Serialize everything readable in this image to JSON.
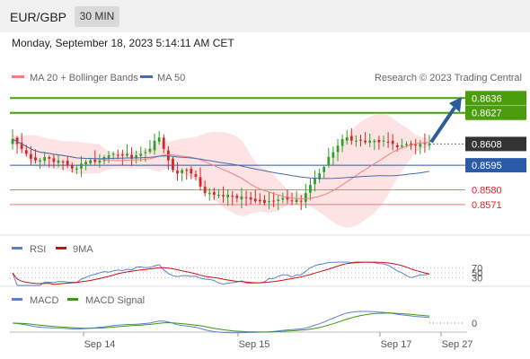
{
  "header": {
    "pair": "EUR/GBP",
    "timeframe": "30 MIN",
    "datetime": "Monday, September 18, 2023 5:14:11 AM CET"
  },
  "legend": {
    "ma20": "MA 20 + Bollinger Bands",
    "ma50": "MA 50",
    "rsi": "RSI",
    "rsi_ma": "9MA",
    "macd": "MACD",
    "macd_signal": "MACD Signal",
    "copyright": "Research © 2023 Trading Central"
  },
  "colors": {
    "up_candle": "#2ca02c",
    "down_candle": "#d62728",
    "bollinger_fill": "#fde0e0",
    "ma20": "#f08080",
    "ma50": "#4a6aa5",
    "resistance": "#4a9e0e",
    "pivot": "#2a5aa8",
    "support": "#f07a7a",
    "arrow": "#2e5b9b",
    "rsi": "#5b7fd6",
    "rsi_ma": "#cc1111",
    "macd": "#5b7fd6",
    "macd_signal": "#3a9a0e"
  },
  "chart_data": [
    {
      "type": "candlestick",
      "title": "EUR/GBP",
      "timeframe": "30 MIN",
      "x_tick_labels": [
        "Sep 14",
        "Sep 15",
        "Sep 17",
        "Sep 27"
      ],
      "ylim": [
        0.856,
        0.864
      ],
      "levels": [
        {
          "value": 0.8636,
          "label": "0.8636",
          "kind": "resistance"
        },
        {
          "value": 0.8627,
          "label": "0.8627",
          "kind": "resistance"
        },
        {
          "value": 0.8608,
          "label": "0.8608",
          "kind": "last_price"
        },
        {
          "value": 0.8595,
          "label": "0.8595",
          "kind": "pivot"
        },
        {
          "value": 0.858,
          "label": "0.8580",
          "kind": "support"
        },
        {
          "value": 0.8571,
          "label": "0.8571",
          "kind": "support"
        }
      ],
      "close": [
        0.8611,
        0.8608,
        0.8605,
        0.8602,
        0.8599,
        0.8598,
        0.8598,
        0.86,
        0.8599,
        0.8597,
        0.8598,
        0.8597,
        0.8595,
        0.8593,
        0.8593,
        0.8596,
        0.8597,
        0.8598,
        0.8597,
        0.8598,
        0.86,
        0.8601,
        0.8602,
        0.8601,
        0.8601,
        0.8602,
        0.8599,
        0.8601,
        0.8602,
        0.8603,
        0.8605,
        0.861,
        0.8612,
        0.8605,
        0.8598,
        0.8592,
        0.859,
        0.8592,
        0.8592,
        0.859,
        0.8588,
        0.8582,
        0.8578,
        0.8578,
        0.8577,
        0.8577,
        0.8576,
        0.8577,
        0.8576,
        0.8575,
        0.8576,
        0.8575,
        0.8574,
        0.8573,
        0.8573,
        0.8572,
        0.8573,
        0.8573,
        0.8574,
        0.8575,
        0.8574,
        0.8573,
        0.8574,
        0.8573,
        0.8578,
        0.8583,
        0.8587,
        0.859,
        0.8594,
        0.86,
        0.8603,
        0.8607,
        0.8611,
        0.8612,
        0.861,
        0.861,
        0.861,
        0.8609,
        0.861,
        0.861,
        0.8609,
        0.861,
        0.8609,
        0.8608,
        0.8606,
        0.8607,
        0.8608,
        0.8607,
        0.8607,
        0.8608,
        0.8608,
        0.8608
      ],
      "indicators": [
        "MA 20 + Bollinger Bands",
        "MA 50"
      ]
    },
    {
      "type": "line",
      "title": "RSI",
      "series": [
        {
          "name": "RSI"
        },
        {
          "name": "9MA"
        }
      ],
      "y_ticks": [
        30,
        50,
        70
      ]
    },
    {
      "type": "line",
      "title": "MACD",
      "series": [
        {
          "name": "MACD"
        },
        {
          "name": "MACD Signal"
        }
      ],
      "y_ticks": [
        0
      ]
    }
  ]
}
